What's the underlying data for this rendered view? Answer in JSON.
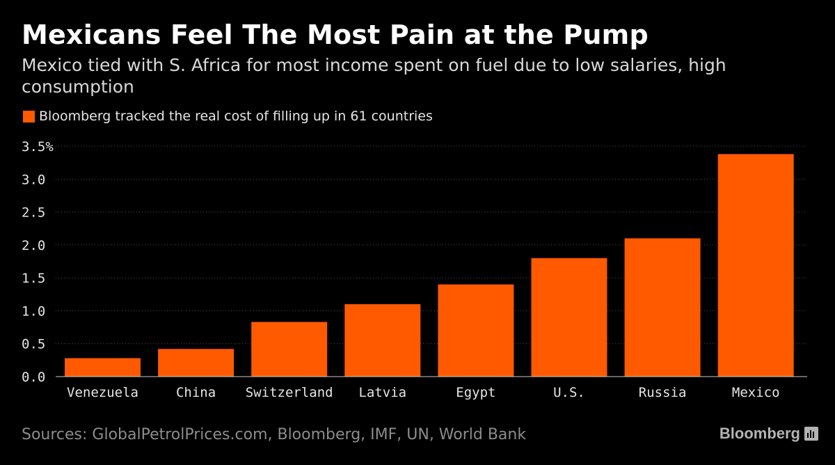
{
  "title": "Mexicans Feel The Most Pain at the Pump",
  "subtitle": "Mexico tied with S. Africa for most income spent on fuel due to low salaries, high consumption",
  "source": "Sources: GlobalPetrolPrices.com, Bloomberg, IMF, UN, World Bank",
  "brand": "Bloomberg",
  "colors": {
    "bar": "#ff5a00",
    "background": "#000000",
    "grid": "#555555"
  },
  "chart_data": {
    "type": "bar",
    "title": "Mexicans Feel The Most Pain at the Pump",
    "xlabel": "",
    "ylabel": "",
    "legend": [
      "Bloomberg tracked the real cost of filling up in 61 countries"
    ],
    "categories": [
      "Venezuela",
      "China",
      "Switzerland",
      "Latvia",
      "Egypt",
      "U.S.",
      "Russia",
      "Mexico"
    ],
    "values": [
      0.28,
      0.42,
      0.83,
      1.1,
      1.4,
      1.8,
      2.1,
      3.38
    ],
    "ylim": [
      0,
      3.5
    ],
    "yticks": [
      0,
      0.5,
      1.0,
      1.5,
      2.0,
      2.5,
      3.0,
      3.5
    ],
    "ytick_labels": [
      "0.0",
      "0.5",
      "1.0",
      "1.5",
      "2.0",
      "2.5",
      "3.0",
      "3.5%"
    ],
    "grid": true
  }
}
